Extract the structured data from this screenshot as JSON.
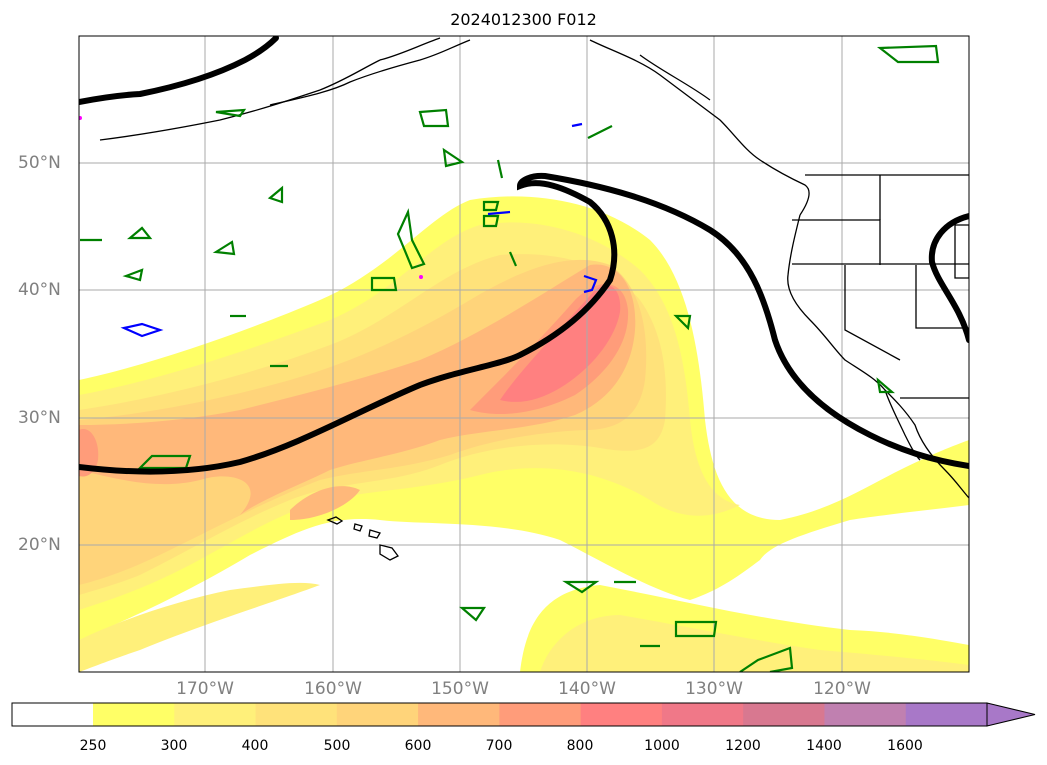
{
  "title": "2024012300 F012",
  "lon_labels": [
    "170°W",
    "160°W",
    "150°W",
    "140°W",
    "130°W",
    "120°W"
  ],
  "lat_labels": [
    "50°N",
    "40°N",
    "30°N",
    "20°N"
  ],
  "colorbar": {
    "ticks": [
      "250",
      "300",
      "400",
      "500",
      "600",
      "700",
      "800",
      "1000",
      "1200",
      "1400",
      "1600"
    ],
    "colors": [
      "#ffff66",
      "#fff07a",
      "#ffe27a",
      "#ffd47a",
      "#ffb87a",
      "#ff9c7a",
      "#ff8080",
      "#f07888",
      "#d87890",
      "#c080b0",
      "#a878c8"
    ],
    "extend": "max"
  },
  "colors": {
    "jet_contour": "#000000",
    "green_contour": "#008000",
    "blue_contour": "#0000ff",
    "coastline": "#000000",
    "grid": "#aaaaaa",
    "label": "#808080"
  }
}
